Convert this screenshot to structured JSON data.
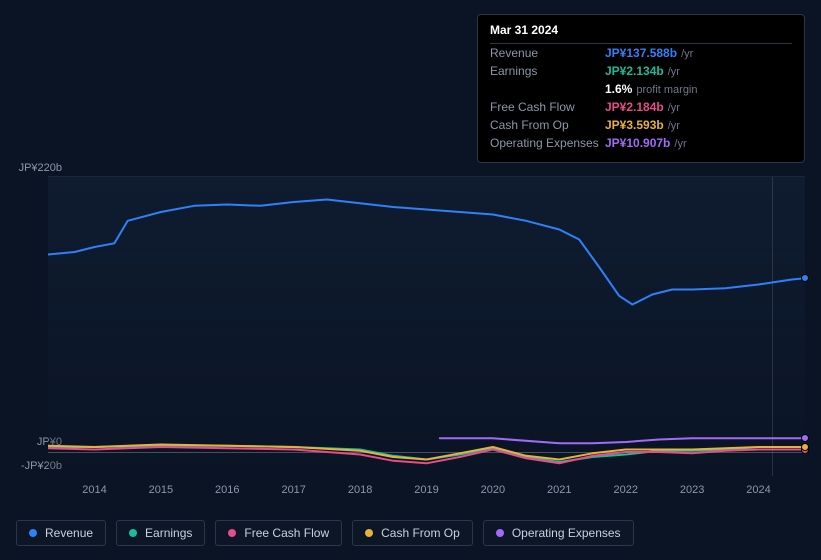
{
  "tooltip": {
    "date": "Mar 31 2024",
    "rows": [
      {
        "label": "Revenue",
        "value": "JP¥137.588b",
        "suffix": "/yr",
        "color": "#2f81f7"
      },
      {
        "label": "Earnings",
        "value": "JP¥2.134b",
        "suffix": "/yr",
        "color": "#1abc9c"
      },
      {
        "label": "",
        "value": "1.6%",
        "suffix": "profit margin",
        "color": "#ffffff"
      },
      {
        "label": "Free Cash Flow",
        "value": "JP¥2.184b",
        "suffix": "/yr",
        "color": "#e74c8b"
      },
      {
        "label": "Cash From Op",
        "value": "JP¥3.593b",
        "suffix": "/yr",
        "color": "#e8b23a"
      },
      {
        "label": "Operating Expenses",
        "value": "JP¥10.907b",
        "suffix": "/yr",
        "color": "#a26bf7"
      }
    ]
  },
  "chart": {
    "type": "line",
    "y_top_label": "JP¥220b",
    "y_zero_label": "JP¥0",
    "y_neg_label": "-JP¥20b",
    "ylim": [
      -20,
      220
    ],
    "xlim": [
      2013.3,
      2024.7
    ],
    "x_ticks": [
      2014,
      2015,
      2016,
      2017,
      2018,
      2019,
      2020,
      2021,
      2022,
      2023,
      2024
    ],
    "background": "#0a1424",
    "grid_color": "rgba(255,255,255,0.08)",
    "zero_line_color": "rgba(255,255,255,0.25)",
    "tooltip_x": 2024.2,
    "line_width": 2,
    "series": [
      {
        "name": "Revenue",
        "color": "#2f81f7",
        "points": [
          [
            2013.3,
            158
          ],
          [
            2013.7,
            160
          ],
          [
            2014.0,
            164
          ],
          [
            2014.3,
            167
          ],
          [
            2014.5,
            185
          ],
          [
            2015.0,
            192
          ],
          [
            2015.5,
            197
          ],
          [
            2016.0,
            198
          ],
          [
            2016.5,
            197
          ],
          [
            2017.0,
            200
          ],
          [
            2017.5,
            202
          ],
          [
            2018.0,
            199
          ],
          [
            2018.5,
            196
          ],
          [
            2019.0,
            194
          ],
          [
            2019.5,
            192
          ],
          [
            2020.0,
            190
          ],
          [
            2020.5,
            185
          ],
          [
            2021.0,
            178
          ],
          [
            2021.3,
            170
          ],
          [
            2021.6,
            148
          ],
          [
            2021.9,
            125
          ],
          [
            2022.1,
            118
          ],
          [
            2022.4,
            126
          ],
          [
            2022.7,
            130
          ],
          [
            2023.0,
            130
          ],
          [
            2023.5,
            131
          ],
          [
            2024.0,
            134
          ],
          [
            2024.5,
            138
          ],
          [
            2024.7,
            139
          ]
        ]
      },
      {
        "name": "Earnings",
        "color": "#1abc9c",
        "points": [
          [
            2013.3,
            4
          ],
          [
            2014,
            4
          ],
          [
            2015,
            5
          ],
          [
            2016,
            5
          ],
          [
            2017,
            4
          ],
          [
            2018,
            2
          ],
          [
            2018.5,
            -3
          ],
          [
            2019,
            -6
          ],
          [
            2019.5,
            -2
          ],
          [
            2020,
            3
          ],
          [
            2020.5,
            -4
          ],
          [
            2021,
            -8
          ],
          [
            2021.5,
            -4
          ],
          [
            2022,
            -2
          ],
          [
            2022.5,
            1
          ],
          [
            2023,
            1
          ],
          [
            2023.5,
            2
          ],
          [
            2024,
            2
          ],
          [
            2024.7,
            2
          ]
        ]
      },
      {
        "name": "Free Cash Flow",
        "color": "#e74c8b",
        "points": [
          [
            2013.3,
            3
          ],
          [
            2014,
            2
          ],
          [
            2015,
            4
          ],
          [
            2016,
            3
          ],
          [
            2017,
            2
          ],
          [
            2018,
            -2
          ],
          [
            2018.5,
            -7
          ],
          [
            2019,
            -9
          ],
          [
            2019.5,
            -4
          ],
          [
            2020,
            2
          ],
          [
            2020.5,
            -5
          ],
          [
            2021,
            -9
          ],
          [
            2021.5,
            -3
          ],
          [
            2022,
            0
          ],
          [
            2022.5,
            0
          ],
          [
            2023,
            -1
          ],
          [
            2023.5,
            1
          ],
          [
            2024,
            2
          ],
          [
            2024.7,
            2
          ]
        ]
      },
      {
        "name": "Cash From Op",
        "color": "#e8b23a",
        "points": [
          [
            2013.3,
            5
          ],
          [
            2014,
            4
          ],
          [
            2015,
            6
          ],
          [
            2016,
            5
          ],
          [
            2017,
            4
          ],
          [
            2018,
            1
          ],
          [
            2018.5,
            -4
          ],
          [
            2019,
            -6
          ],
          [
            2019.5,
            -1
          ],
          [
            2020,
            4
          ],
          [
            2020.5,
            -3
          ],
          [
            2021,
            -6
          ],
          [
            2021.5,
            -1
          ],
          [
            2022,
            2
          ],
          [
            2022.5,
            2
          ],
          [
            2023,
            2
          ],
          [
            2023.5,
            3
          ],
          [
            2024,
            4
          ],
          [
            2024.7,
            4
          ]
        ]
      },
      {
        "name": "Operating Expenses",
        "color": "#a26bf7",
        "points": [
          [
            2019.2,
            11
          ],
          [
            2020,
            11
          ],
          [
            2021,
            7
          ],
          [
            2021.5,
            7
          ],
          [
            2022,
            8
          ],
          [
            2022.5,
            10
          ],
          [
            2023,
            11
          ],
          [
            2023.5,
            11
          ],
          [
            2024,
            11
          ],
          [
            2024.7,
            11
          ]
        ]
      }
    ]
  },
  "legend": [
    {
      "name": "Revenue",
      "color": "#2f81f7"
    },
    {
      "name": "Earnings",
      "color": "#1abc9c"
    },
    {
      "name": "Free Cash Flow",
      "color": "#e74c8b"
    },
    {
      "name": "Cash From Op",
      "color": "#e8b23a"
    },
    {
      "name": "Operating Expenses",
      "color": "#a26bf7"
    }
  ]
}
